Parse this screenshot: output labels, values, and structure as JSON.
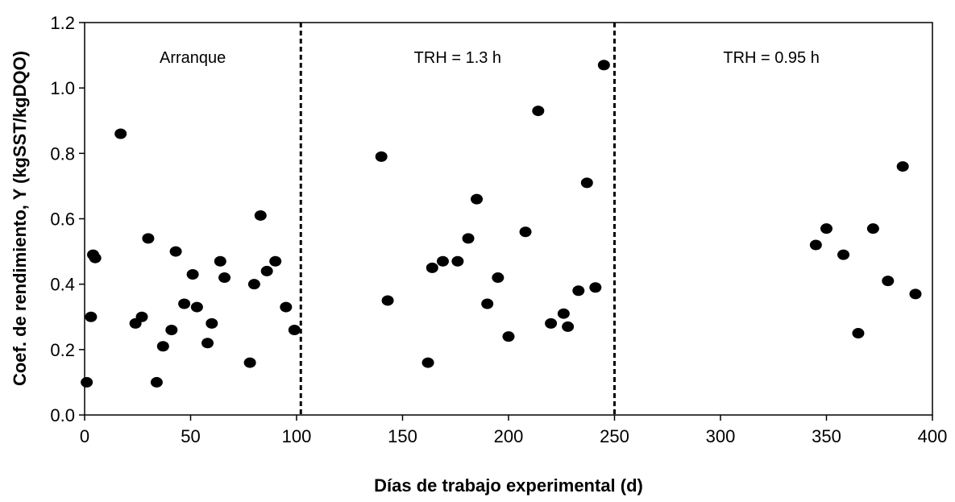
{
  "chart_data": {
    "type": "scatter",
    "title": "",
    "xlabel": "Días de trabajo experimental (d)",
    "ylabel": "Coef. de rendimiento, Y (kgSST/kgDQO)",
    "xlim": [
      0,
      400
    ],
    "ylim": [
      0.0,
      1.2
    ],
    "xticks": [
      0,
      50,
      100,
      150,
      200,
      250,
      300,
      350,
      400
    ],
    "yticks": [
      "0.0",
      "0.2",
      "0.4",
      "0.6",
      "0.8",
      "1.0",
      "1.2"
    ],
    "grid": false,
    "legend": "none",
    "marker_color": "#000000",
    "dividers": [
      {
        "x": 102,
        "style": "dashed"
      },
      {
        "x": 250,
        "style": "dashed"
      }
    ],
    "phase_labels": [
      {
        "text": "Arranque",
        "x": 51
      },
      {
        "text": "TRH = 1.3 h",
        "x": 176
      },
      {
        "text": "TRH = 0.95 h",
        "x": 324
      }
    ],
    "points": [
      {
        "x": 1,
        "y": 0.1
      },
      {
        "x": 3,
        "y": 0.3
      },
      {
        "x": 4,
        "y": 0.49
      },
      {
        "x": 5,
        "y": 0.48
      },
      {
        "x": 17,
        "y": 0.86
      },
      {
        "x": 24,
        "y": 0.28
      },
      {
        "x": 27,
        "y": 0.3
      },
      {
        "x": 30,
        "y": 0.54
      },
      {
        "x": 34,
        "y": 0.1
      },
      {
        "x": 37,
        "y": 0.21
      },
      {
        "x": 41,
        "y": 0.26
      },
      {
        "x": 43,
        "y": 0.5
      },
      {
        "x": 47,
        "y": 0.34
      },
      {
        "x": 51,
        "y": 0.43
      },
      {
        "x": 53,
        "y": 0.33
      },
      {
        "x": 58,
        "y": 0.22
      },
      {
        "x": 60,
        "y": 0.28
      },
      {
        "x": 64,
        "y": 0.47
      },
      {
        "x": 66,
        "y": 0.42
      },
      {
        "x": 78,
        "y": 0.16
      },
      {
        "x": 80,
        "y": 0.4
      },
      {
        "x": 83,
        "y": 0.61
      },
      {
        "x": 86,
        "y": 0.44
      },
      {
        "x": 90,
        "y": 0.47
      },
      {
        "x": 95,
        "y": 0.33
      },
      {
        "x": 99,
        "y": 0.26
      },
      {
        "x": 140,
        "y": 0.79
      },
      {
        "x": 143,
        "y": 0.35
      },
      {
        "x": 162,
        "y": 0.16
      },
      {
        "x": 164,
        "y": 0.45
      },
      {
        "x": 169,
        "y": 0.47
      },
      {
        "x": 176,
        "y": 0.47
      },
      {
        "x": 181,
        "y": 0.54
      },
      {
        "x": 185,
        "y": 0.66
      },
      {
        "x": 190,
        "y": 0.34
      },
      {
        "x": 195,
        "y": 0.42
      },
      {
        "x": 200,
        "y": 0.24
      },
      {
        "x": 208,
        "y": 0.56
      },
      {
        "x": 214,
        "y": 0.93
      },
      {
        "x": 220,
        "y": 0.28
      },
      {
        "x": 226,
        "y": 0.31
      },
      {
        "x": 228,
        "y": 0.27
      },
      {
        "x": 233,
        "y": 0.38
      },
      {
        "x": 237,
        "y": 0.71
      },
      {
        "x": 241,
        "y": 0.39
      },
      {
        "x": 245,
        "y": 1.07
      },
      {
        "x": 345,
        "y": 0.52
      },
      {
        "x": 350,
        "y": 0.57
      },
      {
        "x": 358,
        "y": 0.49
      },
      {
        "x": 365,
        "y": 0.25
      },
      {
        "x": 372,
        "y": 0.57
      },
      {
        "x": 379,
        "y": 0.41
      },
      {
        "x": 386,
        "y": 0.76
      },
      {
        "x": 392,
        "y": 0.37
      }
    ]
  }
}
